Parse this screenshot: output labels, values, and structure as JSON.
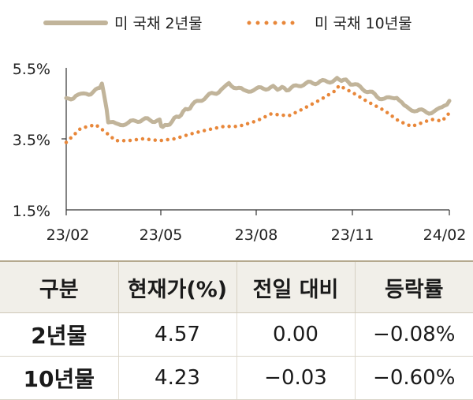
{
  "chart_data": {
    "type": "line",
    "x_ticks": [
      "23/02",
      "23/05",
      "23/08",
      "23/11",
      "24/02"
    ],
    "y_ticks": [
      "5.5%",
      "3.5%",
      "1.5%"
    ],
    "ylim": [
      1.5,
      5.5
    ],
    "legend_position": "top",
    "grid": false,
    "series": [
      {
        "name": "미 국채 2년물",
        "style": "solid",
        "color": "#c1b49a",
        "x": [
          "2023-02-01",
          "2023-02-10",
          "2023-02-20",
          "2023-03-01",
          "2023-03-07",
          "2023-03-10",
          "2023-03-13",
          "2023-03-20",
          "2023-04-01",
          "2023-04-15",
          "2023-05-01",
          "2023-05-04",
          "2023-05-15",
          "2023-06-01",
          "2023-06-15",
          "2023-07-01",
          "2023-07-06",
          "2023-07-20",
          "2023-08-01",
          "2023-08-15",
          "2023-09-01",
          "2023-09-15",
          "2023-10-01",
          "2023-10-15",
          "2023-10-19",
          "2023-11-01",
          "2023-11-15",
          "2023-12-01",
          "2023-12-13",
          "2023-12-20",
          "2024-01-01",
          "2024-01-15",
          "2024-01-25",
          "2024-02-01"
        ],
        "values": [
          4.6,
          4.7,
          4.75,
          4.85,
          5.05,
          4.6,
          4.0,
          3.9,
          3.95,
          4.05,
          4.0,
          3.8,
          4.05,
          4.45,
          4.7,
          4.9,
          5.05,
          4.85,
          4.9,
          4.95,
          4.9,
          5.05,
          5.1,
          5.15,
          5.2,
          5.05,
          4.85,
          4.6,
          4.7,
          4.4,
          4.3,
          4.25,
          4.35,
          4.57
        ]
      },
      {
        "name": "미 국채 10년물",
        "style": "dotted",
        "color": "#e8873a",
        "x": [
          "2023-02-01",
          "2023-02-15",
          "2023-03-01",
          "2023-03-10",
          "2023-03-20",
          "2023-04-01",
          "2023-04-15",
          "2023-05-01",
          "2023-05-15",
          "2023-06-01",
          "2023-06-15",
          "2023-07-01",
          "2023-07-15",
          "2023-08-01",
          "2023-08-15",
          "2023-09-01",
          "2023-09-15",
          "2023-10-01",
          "2023-10-15",
          "2023-10-19",
          "2023-11-01",
          "2023-11-15",
          "2023-12-01",
          "2023-12-15",
          "2023-12-27",
          "2024-01-01",
          "2024-01-15",
          "2024-01-25",
          "2024-02-01"
        ],
        "values": [
          3.4,
          3.8,
          3.9,
          3.7,
          3.45,
          3.45,
          3.5,
          3.45,
          3.5,
          3.65,
          3.75,
          3.85,
          3.85,
          4.0,
          4.2,
          4.15,
          4.35,
          4.6,
          4.85,
          5.0,
          4.8,
          4.55,
          4.3,
          4.0,
          3.85,
          3.9,
          4.05,
          4.0,
          4.23
        ]
      }
    ]
  },
  "table": {
    "headers": [
      "구분",
      "현재가(%)",
      "전일 대비",
      "등락률"
    ],
    "rows": [
      {
        "label": "2년물",
        "price": "4.57",
        "change": "0.00",
        "rate": "−0.08%"
      },
      {
        "label": "10년물",
        "price": "4.23",
        "change": "−0.03",
        "rate": "−0.60%"
      }
    ]
  }
}
